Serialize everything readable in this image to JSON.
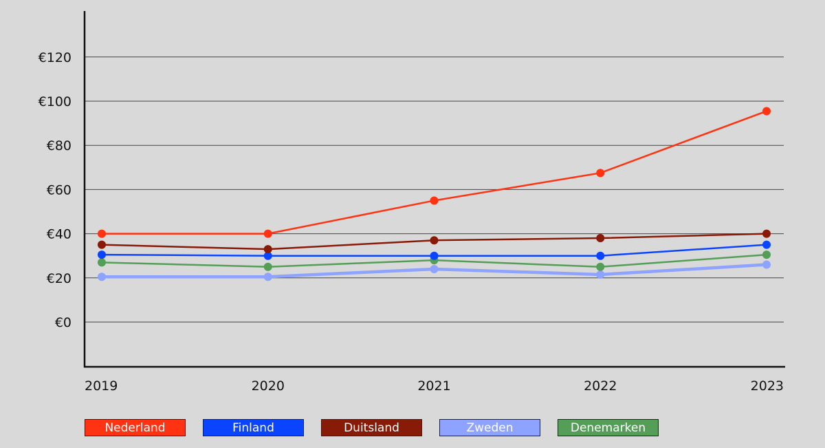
{
  "chart_data": {
    "type": "line",
    "title": "",
    "xlabel": "",
    "ylabel": "",
    "x": [
      "2019",
      "2020",
      "2021",
      "2022",
      "2023"
    ],
    "y_ticks": [
      0,
      20,
      40,
      60,
      80,
      100,
      120
    ],
    "y_tick_labels": [
      "€0",
      "€20",
      "€40",
      "€60",
      "€80",
      "€100",
      "€120"
    ],
    "ylim": [
      -20,
      140
    ],
    "grid": true,
    "legend_position": "bottom",
    "series": [
      {
        "name": "Nederland",
        "color": "#ff3311",
        "values": [
          40,
          40,
          55,
          67.5,
          95.5
        ]
      },
      {
        "name": "Finland",
        "color": "#0a44ff",
        "values": [
          30.5,
          30,
          30,
          30,
          35
        ]
      },
      {
        "name": "Duitsland",
        "color": "#881a08",
        "values": [
          35,
          33,
          37,
          38,
          40
        ]
      },
      {
        "name": "Zweden",
        "color": "#8ea2ff",
        "values": [
          20.5,
          20.5,
          24,
          21.5,
          26
        ]
      },
      {
        "name": "Denemarken",
        "color": "#549e58",
        "values": [
          27,
          25,
          28,
          25,
          30.5
        ]
      }
    ]
  }
}
